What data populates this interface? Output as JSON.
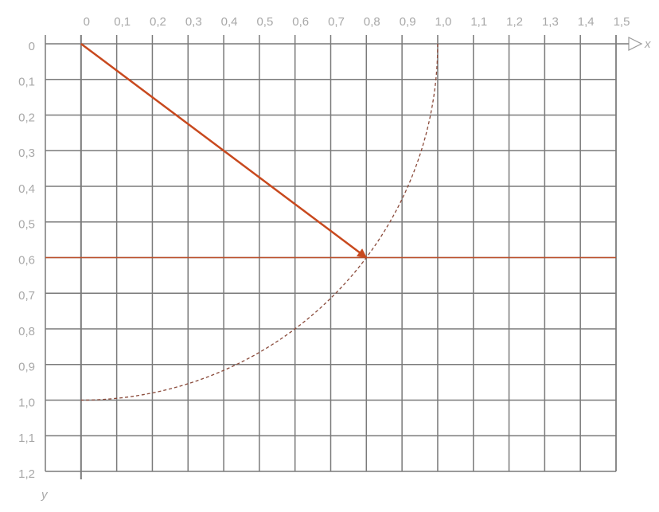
{
  "chart_data": {
    "type": "vector",
    "x_label": "x",
    "y_label": "y",
    "xlim": [
      -0.1,
      1.5
    ],
    "ylim": [
      0,
      1.2
    ],
    "y_inverted": true,
    "xticks": [
      0,
      {
        "value": 0.1,
        "label": "0,1"
      },
      {
        "value": 0.2,
        "label": "0,2"
      },
      {
        "value": 0.3,
        "label": "0,3"
      },
      {
        "value": 0.4,
        "label": "0,4"
      },
      {
        "value": 0.5,
        "label": "0,5"
      },
      {
        "value": 0.6,
        "label": "0,6"
      },
      {
        "value": 0.7,
        "label": "0,7"
      },
      {
        "value": 0.8,
        "label": "0,8"
      },
      {
        "value": 0.9,
        "label": "0,9"
      },
      {
        "value": 1.0,
        "label": "1,0"
      },
      {
        "value": 1.1,
        "label": "1,1"
      },
      {
        "value": 1.2,
        "label": "1,2"
      },
      {
        "value": 1.3,
        "label": "1,3"
      },
      {
        "value": 1.4,
        "label": "1,4"
      },
      {
        "value": 1.5,
        "label": "1,5"
      }
    ],
    "yticks": [
      0,
      {
        "value": 0.1,
        "label": "0,1"
      },
      {
        "value": 0.2,
        "label": "0,2"
      },
      {
        "value": 0.3,
        "label": "0,3"
      },
      {
        "value": 0.4,
        "label": "0,4"
      },
      {
        "value": 0.5,
        "label": "0,5"
      },
      {
        "value": 0.6,
        "label": "0,6"
      },
      {
        "value": 0.7,
        "label": "0,7"
      },
      {
        "value": 0.8,
        "label": "0,8"
      },
      {
        "value": 0.9,
        "label": "0,9"
      },
      {
        "value": 1.0,
        "label": "1,0"
      },
      {
        "value": 1.1,
        "label": "1,1"
      },
      {
        "value": 1.2,
        "label": "1,2"
      }
    ],
    "grid": true,
    "vector": {
      "x": [
        0,
        0.8
      ],
      "y": [
        0,
        0.6
      ],
      "color": "#c8491e"
    },
    "arc_color": "#8a4a3a"
  }
}
